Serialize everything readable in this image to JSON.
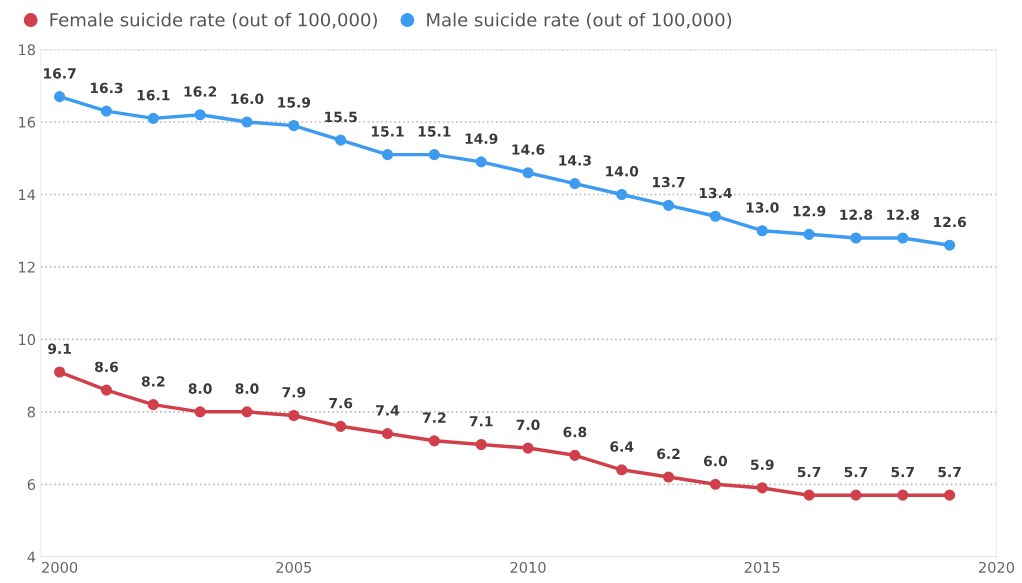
{
  "chart_data": {
    "type": "line",
    "x": [
      2000,
      2001,
      2002,
      2003,
      2004,
      2005,
      2006,
      2007,
      2008,
      2009,
      2010,
      2011,
      2012,
      2013,
      2014,
      2015,
      2016,
      2017,
      2018,
      2019
    ],
    "series": [
      {
        "name": "Female suicide rate (out of 100,000)",
        "color": "#d13f4b",
        "values": [
          9.1,
          8.6,
          8.2,
          8.0,
          8.0,
          7.9,
          7.6,
          7.4,
          7.2,
          7.1,
          7.0,
          6.8,
          6.4,
          6.2,
          6.0,
          5.9,
          5.7,
          5.7,
          5.7,
          5.7
        ],
        "value_labels": [
          "9.1",
          "8.6",
          "8.2",
          "8.0",
          "8.0",
          "7.9",
          "7.6",
          "7.4",
          "7.2",
          "7.1",
          "7.0",
          "6.8",
          "6.4",
          "6.2",
          "6.0",
          "5.9",
          "5.7",
          "5.7",
          "5.7",
          "5.7"
        ]
      },
      {
        "name": "Male suicide rate (out of 100,000)",
        "color": "#3d9bf0",
        "values": [
          16.7,
          16.3,
          16.1,
          16.2,
          16.0,
          15.9,
          15.5,
          15.1,
          15.1,
          14.9,
          14.6,
          14.3,
          14.0,
          13.7,
          13.4,
          13.0,
          12.9,
          12.8,
          12.8,
          12.6
        ],
        "value_labels": [
          "16.7",
          "16.3",
          "16.1",
          "16.2",
          "16.0",
          "15.9",
          "15.5",
          "15.1",
          "15.1",
          "14.9",
          "14.6",
          "14.3",
          "14.0",
          "13.7",
          "13.4",
          "13.0",
          "12.9",
          "12.8",
          "12.8",
          "12.6"
        ]
      }
    ],
    "xlim": [
      1999.6,
      2020
    ],
    "xticks": [
      2000,
      2005,
      2010,
      2015,
      2020
    ],
    "ylim": [
      4,
      18
    ],
    "yticks": [
      4,
      6,
      8,
      10,
      12,
      14,
      16,
      18
    ],
    "grid": "y",
    "legend": "top left",
    "marker": "circle",
    "line_style": "solid"
  }
}
